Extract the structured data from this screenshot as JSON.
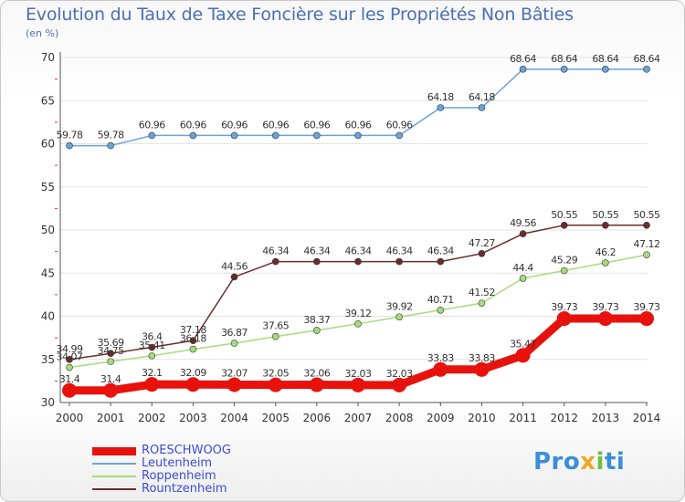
{
  "header": {
    "title": "Evolution du Taux de Taxe Foncière sur les Propriétés Non Bâties",
    "unit": "(en %)"
  },
  "logo": {
    "parts": [
      "Pro",
      "x",
      "i",
      "ti"
    ]
  },
  "colors": {
    "title": "#4a6fb5",
    "legend_text": "#3c4dd1",
    "grid": "#e3e3e3",
    "axis": "#555555"
  },
  "chart_data": {
    "type": "line",
    "title": "Evolution du Taux de Taxe Foncière sur les Propriétés Non Bâties",
    "ylabel": "(en %)",
    "xlabel": "",
    "x": [
      "2000",
      "2001",
      "2002",
      "2003",
      "2004",
      "2005",
      "2006",
      "2007",
      "2008",
      "2009",
      "2010",
      "2011",
      "2012",
      "2013",
      "2014"
    ],
    "ylim": [
      30,
      70
    ],
    "yticks": [
      30,
      35,
      40,
      45,
      50,
      55,
      60,
      65,
      70
    ],
    "grid": true,
    "legend_position": "bottom-left",
    "series": [
      {
        "name": "ROESCHWOOG",
        "color": "#e8120c",
        "highlight": true,
        "values": [
          31.4,
          31.4,
          32.1,
          32.09,
          32.07,
          32.05,
          32.06,
          32.03,
          32.03,
          33.83,
          33.83,
          35.47,
          39.73,
          39.73,
          39.73
        ],
        "labels": [
          "31.4",
          "31.4",
          "32.1",
          "32.09",
          "32.07",
          "32.05",
          "32.06",
          "32.03",
          "32.03",
          "33.83",
          "33.83",
          "35.47",
          "39.73",
          "39.73",
          "39.73"
        ]
      },
      {
        "name": "Leutenheim",
        "color": "#6aa3d8",
        "highlight": false,
        "values": [
          59.78,
          59.78,
          60.96,
          60.96,
          60.96,
          60.96,
          60.96,
          60.96,
          60.96,
          64.18,
          64.18,
          68.64,
          68.64,
          68.64,
          68.64
        ],
        "labels": [
          "59.78",
          "59.78",
          "60.96",
          "60.96",
          "60.96",
          "60.96",
          "60.96",
          "60.96",
          "60.96",
          "64.18",
          "64.18",
          "68.64",
          "68.64",
          "68.64",
          "68.64"
        ]
      },
      {
        "name": "Roppenheim",
        "color": "#a6dc7c",
        "highlight": false,
        "values": [
          34.07,
          34.75,
          35.41,
          36.18,
          36.87,
          37.65,
          38.37,
          39.12,
          39.92,
          40.71,
          41.52,
          44.4,
          45.29,
          46.2,
          47.12
        ],
        "labels": [
          "34.07",
          "34.75",
          "35.41",
          "36.18",
          "36.87",
          "37.65",
          "38.37",
          "39.12",
          "39.92",
          "40.71",
          "41.52",
          "44.4",
          "45.29",
          "46.2",
          "47.12"
        ]
      },
      {
        "name": "Rountzenheim",
        "color": "#6b2c2c",
        "highlight": false,
        "values": [
          34.99,
          35.69,
          36.4,
          37.18,
          44.56,
          46.34,
          46.34,
          46.34,
          46.34,
          46.34,
          47.27,
          49.56,
          50.55,
          50.55,
          50.55
        ],
        "labels": [
          "34.99",
          "35.69",
          "36.4",
          "37.18",
          "44.56",
          "46.34",
          "46.34",
          "46.34",
          "46.34",
          "46.34",
          "47.27",
          "49.56",
          "50.55",
          "50.55",
          "50.55"
        ]
      }
    ]
  }
}
